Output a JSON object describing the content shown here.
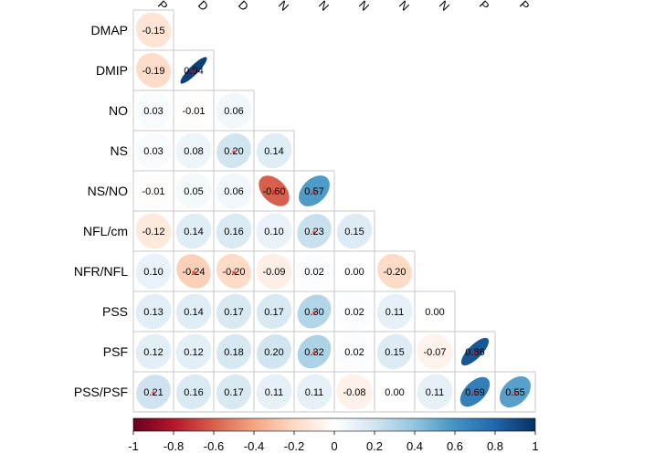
{
  "chart_data": {
    "type": "heatmap",
    "title": "",
    "variables": [
      "P",
      "DMAP",
      "DMIP",
      "NO",
      "NS",
      "NS/NO",
      "NFL/cm",
      "NFR/NFL",
      "PSS",
      "PSF",
      "PSS/PSF"
    ],
    "column_labels": [
      "P",
      "D",
      "D",
      "N",
      "N",
      "N",
      "N",
      "N",
      "P",
      "P"
    ],
    "row_labels": [
      "DMAP",
      "DMIP",
      "NO",
      "NS",
      "NS/NO",
      "NFL/cm",
      "NFR/NFL",
      "PSS",
      "PSF",
      "PSS/PSF"
    ],
    "matrix": [
      [
        -0.15
      ],
      [
        -0.19,
        0.94
      ],
      [
        0.03,
        -0.01,
        0.06
      ],
      [
        0.03,
        0.08,
        0.2,
        0.14
      ],
      [
        -0.01,
        0.05,
        0.06,
        -0.6,
        0.57
      ],
      [
        -0.12,
        0.14,
        0.16,
        0.1,
        0.23,
        0.15
      ],
      [
        0.1,
        -0.24,
        -0.2,
        -0.09,
        0.02,
        0.0,
        -0.2
      ],
      [
        0.13,
        0.14,
        0.17,
        0.17,
        0.3,
        0.02,
        0.11,
        0.0
      ],
      [
        0.12,
        0.12,
        0.18,
        0.2,
        0.32,
        0.02,
        0.15,
        -0.07,
        0.86
      ],
      [
        0.21,
        0.16,
        0.17,
        0.11,
        0.11,
        -0.08,
        0.0,
        0.11,
        0.69,
        0.55
      ]
    ],
    "coefficient_labels": [
      [
        "-0.15"
      ],
      [
        "-0.19",
        "0.94"
      ],
      [
        "0.03",
        "-0.01",
        "0.06"
      ],
      [
        "0.03",
        "0.08",
        "0.20",
        "0.14"
      ],
      [
        "-0.01",
        "0.05",
        "0.06",
        "-0.60",
        "0.57"
      ],
      [
        "-0.12",
        "0.14",
        "0.16",
        "0.10",
        "0.23",
        "0.15"
      ],
      [
        "0.10",
        "-0.24",
        "-0.20",
        "-0.09",
        "0.02",
        "0.00",
        "-0.20"
      ],
      [
        "0.13",
        "0.14",
        "0.17",
        "0.17",
        "0.30",
        "0.02",
        "0.11",
        "0.00"
      ],
      [
        "0.12",
        "0.12",
        "0.18",
        "0.20",
        "0.32",
        "0.02",
        "0.15",
        "-0.07",
        "0.86"
      ],
      [
        "0.21",
        "0.16",
        "0.17",
        "0.11",
        "0.11",
        "-0.08",
        "0.00",
        "0.11",
        "0.69",
        "0.55"
      ]
    ],
    "significance_marker": "*",
    "significant": [
      [
        false
      ],
      [
        false,
        true
      ],
      [
        false,
        false,
        false
      ],
      [
        false,
        false,
        true,
        false
      ],
      [
        false,
        false,
        false,
        true,
        true
      ],
      [
        false,
        false,
        false,
        false,
        true,
        false
      ],
      [
        false,
        true,
        true,
        false,
        false,
        false,
        false
      ],
      [
        false,
        false,
        false,
        false,
        true,
        false,
        false,
        false
      ],
      [
        false,
        false,
        false,
        false,
        true,
        false,
        false,
        false,
        true
      ],
      [
        true,
        false,
        false,
        false,
        false,
        false,
        false,
        false,
        true,
        true
      ]
    ],
    "colorbar": {
      "range": [
        -1,
        1
      ],
      "ticks": [
        "-1",
        "-0.8",
        "-0.6",
        "-0.4",
        "-0.2",
        "0",
        "0.2",
        "0.4",
        "0.6",
        "0.8",
        "1"
      ],
      "colors": [
        "#67001f",
        "#b2182b",
        "#d6604d",
        "#f4a582",
        "#fddbc7",
        "#ffffff",
        "#d1e5f0",
        "#92c5de",
        "#4393c3",
        "#2166ac",
        "#053061"
      ],
      "placement": "bottom"
    },
    "grid": true
  }
}
